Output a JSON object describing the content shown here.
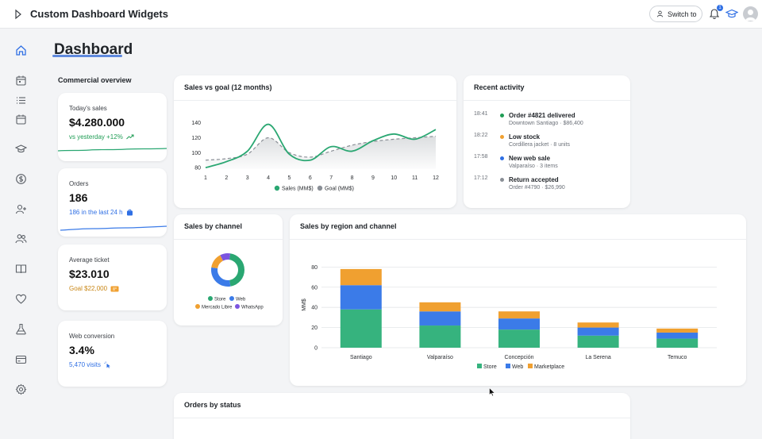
{
  "app": {
    "title": "Custom Dashboard Widgets",
    "switch_label": "Switch to",
    "notification_count": "1"
  },
  "sidebar": {
    "icons": [
      "home-icon",
      "calendar-icon",
      "list-icon",
      "calendar-alt-icon",
      "graduation-cap-icon",
      "dollar-icon",
      "add-user-icon",
      "users-icon",
      "book-icon",
      "heart-icon",
      "flask-icon",
      "wallet-icon",
      "settings-icon"
    ]
  },
  "page": {
    "title": "Dashboard",
    "section_label": "Commercial overview"
  },
  "kpis": [
    {
      "label": "Today's sales",
      "value": "$4.280.000",
      "sub": "vs yesterday +12%",
      "color": "#1f9d55"
    },
    {
      "label": "Orders",
      "value": "186",
      "sub": "186 in the last 24 h",
      "color": "#2f6fe4"
    },
    {
      "label": "Average ticket",
      "value": "$23.010",
      "sub": "Goal $22,000",
      "color": "#c98716"
    },
    {
      "label": "Web conversion",
      "value": "3.4%",
      "sub": "5,470 visits",
      "color": "#2f6fe4"
    }
  ],
  "sales_goal_card": {
    "title": "Sales vs goal (12 months)"
  },
  "recent_activity": {
    "title": "Recent activity",
    "items": [
      {
        "time": "18:41",
        "title": "Order #4821 delivered",
        "detail": "Downtown Santiago · $86,400",
        "color": "#1f9d55"
      },
      {
        "time": "18:22",
        "title": "Low stock",
        "detail": "Cordillera jacket · 8 units",
        "color": "#f0a030"
      },
      {
        "time": "17:58",
        "title": "New web sale",
        "detail": "Valparaíso · 3 items",
        "color": "#2f6fe4"
      },
      {
        "time": "17:12",
        "title": "Return accepted",
        "detail": "Order #4790 · $26,990",
        "color": "#8a8f96"
      }
    ]
  },
  "channel_card": {
    "title": "Sales by channel"
  },
  "region_card": {
    "title": "Sales by region and channel"
  },
  "orders_status_card": {
    "title": "Orders by status"
  },
  "chart_data": [
    {
      "type": "line",
      "title": "Sales vs goal (12 months)",
      "x": [
        1,
        2,
        3,
        4,
        5,
        6,
        7,
        8,
        9,
        10,
        11,
        12
      ],
      "series": [
        {
          "name": "Sales (MM$)",
          "values": [
            80,
            88,
            102,
            138,
            98,
            90,
            108,
            102,
            116,
            125,
            118,
            131
          ],
          "color": "#2aa772"
        },
        {
          "name": "Goal (MM$)",
          "values": [
            90,
            92,
            98,
            120,
            100,
            94,
            102,
            110,
            115,
            118,
            120,
            122
          ],
          "color": "#8a8f96"
        }
      ],
      "yticks": [
        80,
        100,
        120,
        140
      ],
      "ylim": [
        78,
        145
      ],
      "legend": "bottom"
    },
    {
      "type": "pie",
      "title": "Sales by channel",
      "categories": [
        "Store",
        "Web",
        "Mercado Libre",
        "WhatsApp"
      ],
      "values": [
        45,
        30,
        15,
        10
      ],
      "colors": [
        "#2aa772",
        "#3b7be8",
        "#f0a030",
        "#7b55e0"
      ],
      "legend": "bottom"
    },
    {
      "type": "bar",
      "title": "Sales by region and channel",
      "categories": [
        "Santiago",
        "Valparaíso",
        "Concepción",
        "La Serena",
        "Temuco"
      ],
      "series": [
        {
          "name": "Store",
          "values": [
            38,
            22,
            18,
            12,
            9
          ],
          "color": "#36b37e"
        },
        {
          "name": "Web",
          "values": [
            24,
            14,
            11,
            8,
            6
          ],
          "color": "#3b7be8"
        },
        {
          "name": "Marketplace",
          "values": [
            16,
            9,
            7,
            5,
            4
          ],
          "color": "#f0a030"
        }
      ],
      "ylabel": "MM$",
      "yticks": [
        0,
        20,
        40,
        60,
        80
      ],
      "ylim": [
        0,
        85
      ],
      "stacked": true,
      "grid": true,
      "legend": "bottom"
    }
  ]
}
